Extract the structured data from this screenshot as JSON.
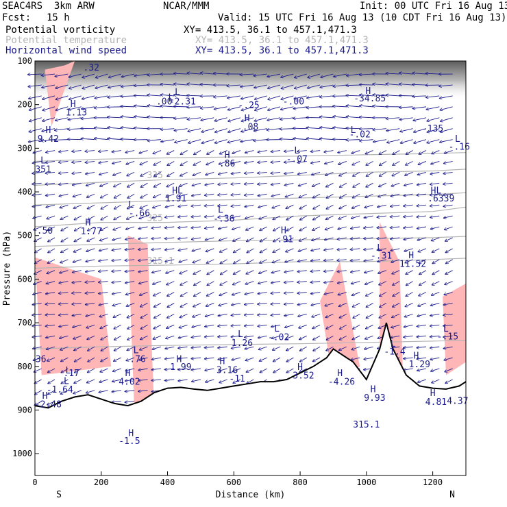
{
  "header": {
    "model": "SEAC4RS  3km ARW",
    "org": "NCAR/MMM",
    "init": "Init: 00 UTC Fri 16 Aug 13",
    "fcst_label": "Fcst:",
    "fcst_value": "15 h",
    "valid": "Valid: 15 UTC Fri 16 Aug 13 (10 CDT Fri 16 Aug 13)"
  },
  "fields": [
    {
      "label": "Potential vorticity",
      "xy": "XY= 413.5, 36.1 to 457.1,471.3",
      "color": "#000000"
    },
    {
      "label": "Potential temperature",
      "xy": "XY= 413.5, 36.1 to 457.1,471.3",
      "color": "#b4b4b4"
    },
    {
      "label": "Horizontal wind speed",
      "xy": "XY= 413.5, 36.1 to 457.1,471.3",
      "color": "#1a1a8c"
    }
  ],
  "chart_data": {
    "type": "cross-section",
    "xlabel": "Distance (km)",
    "ylabel": "Pressure (hPa)",
    "xlim": [
      0,
      1300
    ],
    "ylim": [
      1050,
      100
    ],
    "x_ticks": [
      0,
      200,
      400,
      600,
      800,
      1000,
      1200
    ],
    "y_ticks": [
      100,
      200,
      300,
      400,
      500,
      600,
      700,
      800,
      900,
      1000
    ],
    "left_end": "S",
    "right_end": "N",
    "theta_isentropes": [
      {
        "label": "325",
        "values_km": [
          0,
          200,
          400,
          600,
          800,
          1000,
          1200,
          1300
        ],
        "values_p": [
          480,
          470,
          470,
          465,
          455,
          450,
          445,
          435
        ]
      },
      {
        "label": "335",
        "values_km": [
          0,
          200,
          400,
          600,
          800,
          1000,
          1200,
          1300
        ],
        "values_p": [
          385,
          378,
          372,
          368,
          362,
          355,
          352,
          348
        ]
      },
      {
        "label": "315.1",
        "values_km": [
          0,
          200,
          400,
          600,
          800,
          1000,
          1200,
          1300
        ],
        "values_p": [
          575,
          570,
          568,
          565,
          560,
          560,
          555,
          552
        ]
      },
      {
        "label": "",
        "values_km": [
          0,
          200,
          400,
          600,
          800,
          1000,
          1200,
          1300
        ],
        "values_p": [
          330,
          325,
          322,
          320,
          318,
          315,
          312,
          310
        ]
      },
      {
        "label": "",
        "values_km": [
          0,
          200,
          400,
          600,
          800,
          1000,
          1200,
          1300
        ],
        "values_p": [
          430,
          425,
          420,
          418,
          414,
          410,
          406,
          402
        ]
      },
      {
        "label": "",
        "values_km": [
          0,
          200,
          400,
          600,
          800,
          1000,
          1200,
          1300
        ],
        "values_p": [
          525,
          520,
          516,
          512,
          510,
          507,
          505,
          502
        ]
      },
      {
        "label": "",
        "values_km": [
          0,
          200,
          400,
          600,
          800,
          1000,
          1200,
          1300
        ],
        "values_p": [
          760,
          755,
          752,
          750,
          748,
          745,
          742,
          740
        ]
      }
    ],
    "terrain_surface": {
      "km": [
        0,
        40,
        80,
        120,
        160,
        200,
        240,
        280,
        320,
        360,
        400,
        440,
        480,
        520,
        560,
        600,
        640,
        680,
        720,
        760,
        800,
        840,
        880,
        900,
        920,
        960,
        1000,
        1040,
        1060,
        1080,
        1120,
        1160,
        1200,
        1240,
        1280,
        1300
      ],
      "p": [
        890,
        895,
        880,
        870,
        865,
        875,
        885,
        890,
        880,
        860,
        850,
        848,
        852,
        855,
        850,
        845,
        840,
        835,
        835,
        830,
        815,
        800,
        780,
        760,
        770,
        790,
        830,
        760,
        700,
        760,
        820,
        845,
        850,
        852,
        845,
        835
      ]
    },
    "labels": [
      {
        "t": "H",
        "km": 115,
        "p": 205
      },
      {
        "t": "1.13",
        "km": 125,
        "p": 225
      },
      {
        "t": "H",
        "km": 40,
        "p": 265
      },
      {
        "t": "9.42",
        "km": 40,
        "p": 285
      },
      {
        "t": "L",
        "km": 25,
        "p": 335
      },
      {
        "t": "351",
        "km": 25,
        "p": 355
      },
      {
        "t": "H",
        "km": 160,
        "p": 477
      },
      {
        "t": "1.77",
        "km": 170,
        "p": 497
      },
      {
        "t": "L",
        "km": 290,
        "p": 436
      },
      {
        "t": "-.66",
        "km": 315,
        "p": 456
      },
      {
        "t": "L",
        "km": 410,
        "p": 190
      },
      {
        "t": "L",
        "km": 430,
        "p": 178
      },
      {
        "t": ".00",
        "km": 390,
        "p": 200
      },
      {
        "t": "-2.31",
        "km": 445,
        "p": 200
      },
      {
        "t": ".32",
        "km": 170,
        "p": 122
      },
      {
        "t": "HL",
        "km": 430,
        "p": 404
      },
      {
        "t": "1.91",
        "km": 425,
        "p": 422
      },
      {
        "t": "L",
        "km": 560,
        "p": 448
      },
      {
        "t": "-.36",
        "km": 570,
        "p": 468
      },
      {
        "t": "H",
        "km": 580,
        "p": 322
      },
      {
        "t": ".86",
        "km": 580,
        "p": 342
      },
      {
        "t": "H",
        "km": 640,
        "p": 238
      },
      {
        "t": ".08",
        "km": 650,
        "p": 258
      },
      {
        "t": "-.25",
        "km": 645,
        "p": 208
      },
      {
        "t": "-.00",
        "km": 780,
        "p": 200
      },
      {
        "t": "L",
        "km": 790,
        "p": 312
      },
      {
        "t": "-.07",
        "km": 790,
        "p": 332
      },
      {
        "t": "H",
        "km": 750,
        "p": 495
      },
      {
        "t": ".91",
        "km": 755,
        "p": 515
      },
      {
        "t": "H",
        "km": 1005,
        "p": 175
      },
      {
        "t": "-34.85",
        "km": 1010,
        "p": 193
      },
      {
        "t": "L",
        "km": 960,
        "p": 265
      },
      {
        "t": "-.02",
        "km": 980,
        "p": 275
      },
      {
        "t": "-135",
        "km": 1200,
        "p": 262
      },
      {
        "t": "L",
        "km": 1275,
        "p": 285
      },
      {
        "t": "-.16",
        "km": 1280,
        "p": 303
      },
      {
        "t": "HL",
        "km": 1210,
        "p": 404
      },
      {
        "t": ".6339",
        "km": 1225,
        "p": 422
      },
      {
        "t": "L",
        "km": 1040,
        "p": 535
      },
      {
        "t": "-.31",
        "km": 1045,
        "p": 553
      },
      {
        "t": "H",
        "km": 1135,
        "p": 552
      },
      {
        "t": "11.52",
        "km": 1140,
        "p": 572
      },
      {
        "t": "L",
        "km": 1240,
        "p": 720
      },
      {
        "t": "-.15",
        "km": 1245,
        "p": 738
      },
      {
        "t": "L",
        "km": 305,
        "p": 770
      },
      {
        "t": ".76",
        "km": 310,
        "p": 790
      },
      {
        "t": "H",
        "km": 435,
        "p": 790
      },
      {
        "t": "1.99",
        "km": 440,
        "p": 808
      },
      {
        "t": "H",
        "km": 280,
        "p": 822
      },
      {
        "t": "4.02",
        "km": 285,
        "p": 842
      },
      {
        "t": "L",
        "km": 95,
        "p": 840
      },
      {
        "t": "-1.64",
        "km": 75,
        "p": 860
      },
      {
        "t": "L",
        "km": 100,
        "p": 816
      },
      {
        "t": ".17",
        "km": 110,
        "p": 822
      },
      {
        "t": "36",
        "km": 18,
        "p": 790
      },
      {
        "t": "H",
        "km": 30,
        "p": 874
      },
      {
        "t": "-2.48",
        "km": 40,
        "p": 894
      },
      {
        "t": "L",
        "km": 620,
        "p": 733
      },
      {
        "t": "1.26",
        "km": 625,
        "p": 753
      },
      {
        "t": "L",
        "km": 730,
        "p": 720
      },
      {
        "t": "-.02",
        "km": 735,
        "p": 740
      },
      {
        "t": "H",
        "km": 565,
        "p": 795
      },
      {
        "t": "3.16",
        "km": 580,
        "p": 815
      },
      {
        "t": "-11",
        "km": 610,
        "p": 835
      },
      {
        "t": "H",
        "km": 800,
        "p": 808
      },
      {
        "t": "3.52",
        "km": 810,
        "p": 828
      },
      {
        "t": "H",
        "km": 920,
        "p": 822
      },
      {
        "t": "-4.26",
        "km": 925,
        "p": 842
      },
      {
        "t": "H",
        "km": 1020,
        "p": 859
      },
      {
        "t": "9.93",
        "km": 1025,
        "p": 879
      },
      {
        "t": "L",
        "km": 1080,
        "p": 755
      },
      {
        "t": "-1.4",
        "km": 1085,
        "p": 773
      },
      {
        "t": "H",
        "km": 1150,
        "p": 782
      },
      {
        "t": "1.29",
        "km": 1160,
        "p": 802
      },
      {
        "t": "H",
        "km": 1200,
        "p": 868
      },
      {
        "t": "4.81",
        "km": 1210,
        "p": 888
      },
      {
        "t": "4.37",
        "km": 1275,
        "p": 886
      },
      {
        "t": "H",
        "km": 290,
        "p": 960
      },
      {
        "t": "-1.5",
        "km": 285,
        "p": 978
      },
      {
        "t": ".50",
        "km": 30,
        "p": 496
      },
      {
        "t": "315.1",
        "km": 1000,
        "p": 940
      }
    ],
    "pv_hatched_regions_km": [
      [
        [
          30,
          120
        ],
        [
          50,
          250
        ],
        [
          120,
          100
        ],
        [
          90,
          110
        ]
      ],
      [
        [
          0,
          550
        ],
        [
          200,
          600
        ],
        [
          230,
          800
        ],
        [
          20,
          820
        ]
      ],
      [
        [
          280,
          500
        ],
        [
          340,
          520
        ],
        [
          360,
          900
        ],
        [
          300,
          905
        ]
      ],
      [
        [
          860,
          650
        ],
        [
          920,
          560
        ],
        [
          980,
          800
        ],
        [
          900,
          840
        ]
      ],
      [
        [
          1040,
          470
        ],
        [
          1100,
          560
        ],
        [
          1110,
          820
        ],
        [
          1040,
          860
        ]
      ],
      [
        [
          1230,
          640
        ],
        [
          1300,
          610
        ],
        [
          1300,
          790
        ],
        [
          1240,
          820
        ]
      ]
    ]
  }
}
